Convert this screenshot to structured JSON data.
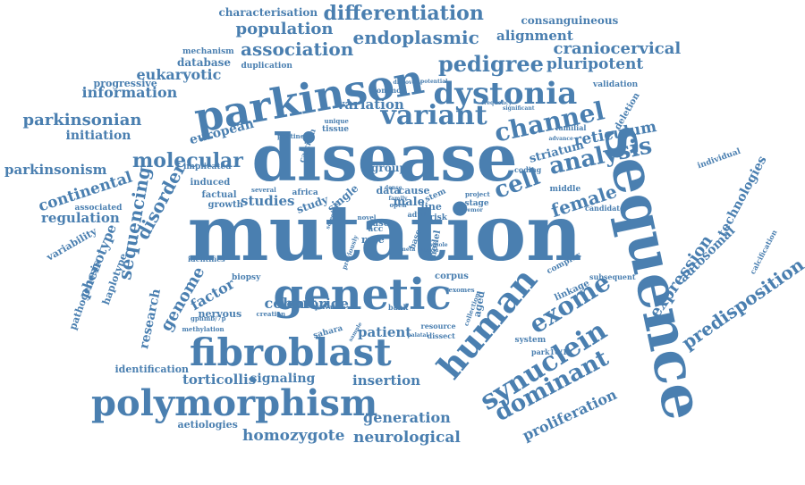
{
  "word_color": "#4a7fb0",
  "background_color": "#ffffff",
  "words": [
    {
      "text": "mutation",
      "weight": 100
    },
    {
      "text": "disease",
      "weight": 85
    },
    {
      "text": "sequence",
      "weight": 80
    },
    {
      "text": "genetic",
      "weight": 55
    },
    {
      "text": "parkinson",
      "weight": 52
    },
    {
      "text": "fibroblast",
      "weight": 50
    },
    {
      "text": "polymorphism",
      "weight": 48
    },
    {
      "text": "human",
      "weight": 45
    },
    {
      "text": "dystonia",
      "weight": 40
    },
    {
      "text": "variant",
      "weight": 36
    },
    {
      "text": "synuclein",
      "weight": 34
    },
    {
      "text": "channel",
      "weight": 32
    },
    {
      "text": "exome",
      "weight": 30
    },
    {
      "text": "dominant",
      "weight": 29
    },
    {
      "text": "analysis",
      "weight": 28
    },
    {
      "text": "pedigree",
      "weight": 27
    },
    {
      "text": "cell",
      "weight": 27
    },
    {
      "text": "differentiation",
      "weight": 26
    },
    {
      "text": "endoplasmic",
      "weight": 24
    },
    {
      "text": "association",
      "weight": 24
    },
    {
      "text": "molecular",
      "weight": 24
    },
    {
      "text": "disorder",
      "weight": 23
    },
    {
      "text": "sequencing",
      "weight": 23
    },
    {
      "text": "female",
      "weight": 22
    },
    {
      "text": "predisposition",
      "weight": 22
    },
    {
      "text": "genome",
      "weight": 21
    },
    {
      "text": "population",
      "weight": 20
    },
    {
      "text": "craniocervical",
      "weight": 20
    },
    {
      "text": "reticulum",
      "weight": 20
    },
    {
      "text": "expression",
      "weight": 20
    },
    {
      "text": "parkinsonian",
      "weight": 19
    },
    {
      "text": "neurological",
      "weight": 19
    },
    {
      "text": "homozygote",
      "weight": 18
    },
    {
      "text": "proliferation",
      "weight": 18
    },
    {
      "text": "pluripotent",
      "weight": 18
    },
    {
      "text": "information",
      "weight": 17
    },
    {
      "text": "eukaryotic",
      "weight": 17
    },
    {
      "text": "continental",
      "weight": 17
    },
    {
      "text": "factor",
      "weight": 17
    },
    {
      "text": "cohort",
      "weight": 17
    },
    {
      "text": "generation",
      "weight": 17
    },
    {
      "text": "torticollis",
      "weight": 16
    },
    {
      "text": "alignment",
      "weight": 16
    },
    {
      "text": "regulation",
      "weight": 16
    },
    {
      "text": "parkinsonism",
      "weight": 16
    },
    {
      "text": "initiation",
      "weight": 16
    },
    {
      "text": "european",
      "weight": 16
    },
    {
      "text": "studies",
      "weight": 16
    },
    {
      "text": "chloride",
      "weight": 16
    },
    {
      "text": "insertion",
      "weight": 15
    },
    {
      "text": "signaling",
      "weight": 15
    },
    {
      "text": "patient",
      "weight": 15
    },
    {
      "text": "research",
      "weight": 15
    },
    {
      "text": "phenotype",
      "weight": 15
    },
    {
      "text": "striatum",
      "weight": 15
    },
    {
      "text": "technologies",
      "weight": 14
    },
    {
      "text": "autosomal",
      "weight": 14
    },
    {
      "text": "variation",
      "weight": 14
    },
    {
      "text": "characterisation",
      "weight": 13
    },
    {
      "text": "consanguineous",
      "weight": 13
    },
    {
      "text": "database",
      "weight": 13
    },
    {
      "text": "progressive",
      "weight": 12
    },
    {
      "text": "aetiologies",
      "weight": 12
    },
    {
      "text": "identification",
      "weight": 12
    },
    {
      "text": "nervous",
      "weight": 12
    },
    {
      "text": "haplotype",
      "weight": 12
    },
    {
      "text": "pathogenesis",
      "weight": 12
    },
    {
      "text": "variability",
      "weight": 12
    },
    {
      "text": "deletion",
      "weight": 12
    },
    {
      "text": "mechanism",
      "weight": 11
    },
    {
      "text": "duplication",
      "weight": 11
    },
    {
      "text": "implicated",
      "weight": 11
    },
    {
      "text": "induced",
      "weight": 11
    },
    {
      "text": "factual",
      "weight": 11
    },
    {
      "text": "growth",
      "weight": 11
    },
    {
      "text": "associated",
      "weight": 10
    },
    {
      "text": "biopsy",
      "weight": 10
    },
    {
      "text": "sahara",
      "weight": 10
    },
    {
      "text": "system",
      "weight": 10
    },
    {
      "text": "park16/1q",
      "weight": 10
    },
    {
      "text": "linkage",
      "weight": 10
    },
    {
      "text": "complex",
      "weight": 10
    },
    {
      "text": "middle",
      "weight": 10
    },
    {
      "text": "familial",
      "weight": 10
    },
    {
      "text": "validation",
      "weight": 10
    },
    {
      "text": "individual",
      "weight": 10
    },
    {
      "text": "calcification",
      "weight": 9
    },
    {
      "text": "candidate",
      "weight": 9
    },
    {
      "text": "subsequent",
      "weight": 9
    },
    {
      "text": "methylation",
      "weight": 9
    },
    {
      "text": "gpnmb/7p",
      "weight": 9
    },
    {
      "text": "identifies",
      "weight": 9
    },
    {
      "text": "creation",
      "weight": 9
    },
    {
      "text": "private",
      "weight": 9
    },
    {
      "text": "bank",
      "weight": 10
    },
    {
      "text": "corpus",
      "weight": 11
    },
    {
      "text": "exomes",
      "weight": 10
    },
    {
      "text": "collection",
      "weight": 9
    },
    {
      "text": "resource",
      "weight": 10
    },
    {
      "text": "dissect",
      "weight": 10
    },
    {
      "text": "palatal",
      "weight": 9
    },
    {
      "text": "sample",
      "weight": 9
    },
    {
      "text": "aged",
      "weight": 14
    },
    {
      "text": "model",
      "weight": 12
    },
    {
      "text": "group",
      "weight": 13
    },
    {
      "text": "single",
      "weight": 13
    },
    {
      "text": "study",
      "weight": 13
    },
    {
      "text": "africa",
      "weight": 11
    },
    {
      "text": "several",
      "weight": 9
    },
    {
      "text": "calcium",
      "weight": 11
    },
    {
      "text": "tissue",
      "weight": 12
    },
    {
      "text": "unique",
      "weight": 9
    },
    {
      "text": "pontine",
      "weight": 9
    },
    {
      "text": "common",
      "weight": 11
    },
    {
      "text": "discovery",
      "weight": 9
    },
    {
      "text": "potential",
      "weight": 9
    },
    {
      "text": "significant",
      "weight": 9
    },
    {
      "text": "frequency",
      "weight": 9
    },
    {
      "text": "advance",
      "weight": 9
    },
    {
      "text": "coding",
      "weight": 10
    },
    {
      "text": "data",
      "weight": 13
    },
    {
      "text": "cause",
      "weight": 13
    },
    {
      "text": "stem",
      "weight": 12
    },
    {
      "text": "male",
      "weight": 15
    },
    {
      "text": "line",
      "weight": 14
    },
    {
      "text": "stage",
      "weight": 11
    },
    {
      "text": "project",
      "weight": 9
    },
    {
      "text": "tremor",
      "weight": 9
    },
    {
      "text": "adult",
      "weight": 11
    },
    {
      "text": "risk",
      "weight": 12
    },
    {
      "text": "case",
      "weight": 12
    },
    {
      "text": "rare",
      "weight": 14
    },
    {
      "text": "acc",
      "weight": 12
    },
    {
      "text": "novel",
      "weight": 10
    },
    {
      "text": "base",
      "weight": 11
    },
    {
      "text": "meta",
      "weight": 9
    },
    {
      "text": "ataxia",
      "weight": 9
    },
    {
      "text": "whole",
      "weight": 9
    },
    {
      "text": "previously",
      "weight": 9
    },
    {
      "text": "open",
      "weight": 10
    },
    {
      "text": "family",
      "weight": 9
    },
    {
      "text": "dense",
      "weight": 9
    },
    {
      "text": "screening",
      "weight": 9
    }
  ]
}
